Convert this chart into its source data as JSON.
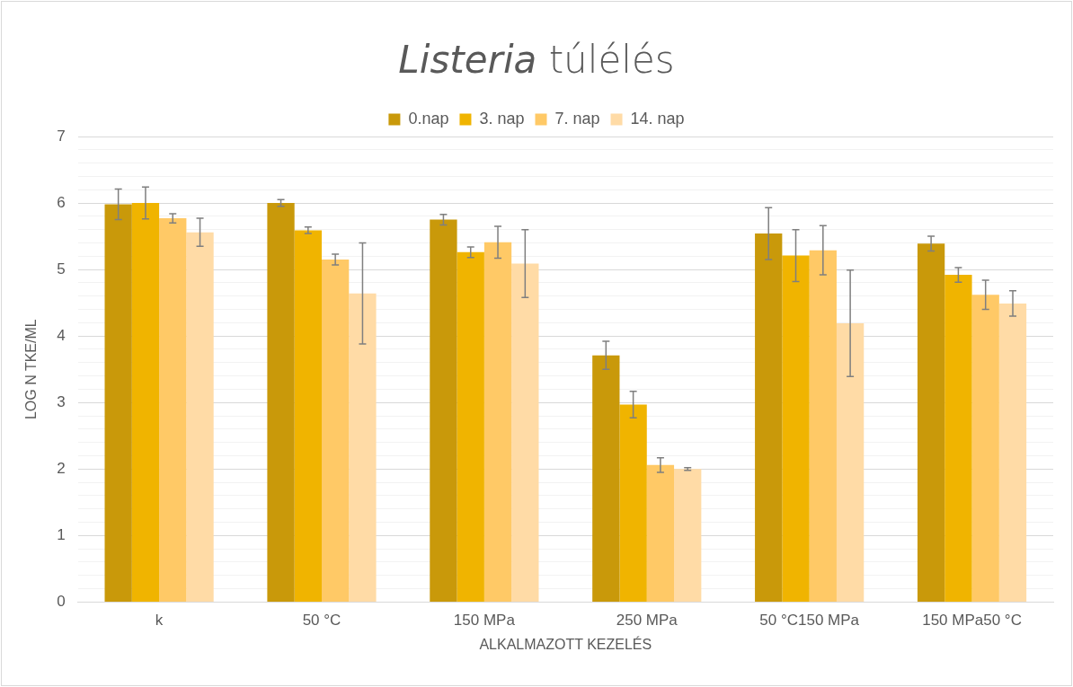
{
  "chart_data": {
    "type": "bar",
    "title": "Listeria túlélés",
    "xlabel": "ALKALMAZOTT KEZELÉS",
    "ylabel": "LOG N TKE/ML",
    "categories": [
      "k",
      "50 °C",
      "150 MPa",
      "250 MPa",
      "50 °C150 MPa",
      "150 MPa50 °C"
    ],
    "series": [
      {
        "name": "0.nap",
        "color": "#c9990a",
        "values": [
          5.98,
          6.0,
          5.75,
          3.71,
          5.54,
          5.39
        ],
        "errors": [
          0.23,
          0.05,
          0.08,
          0.21,
          0.39,
          0.11
        ]
      },
      {
        "name": "3. nap",
        "color": "#f0b400",
        "values": [
          6.0,
          5.59,
          5.26,
          2.97,
          5.21,
          4.92
        ],
        "errors": [
          0.24,
          0.05,
          0.08,
          0.2,
          0.39,
          0.11
        ]
      },
      {
        "name": "7. nap",
        "color": "#ffc966",
        "values": [
          5.77,
          5.15,
          5.41,
          2.06,
          5.29,
          4.62
        ],
        "errors": [
          0.07,
          0.08,
          0.24,
          0.11,
          0.37,
          0.22
        ]
      },
      {
        "name": "14. nap",
        "color": "#ffdba6",
        "values": [
          5.56,
          4.64,
          5.09,
          2.0,
          4.19,
          4.49
        ],
        "errors": [
          0.21,
          0.76,
          0.51,
          0.02,
          0.8,
          0.19
        ]
      }
    ],
    "ylim": [
      0,
      7
    ],
    "yticks": [
      0,
      {
        "value": 0.2,
        "label": null
      },
      {
        "value": 0.4,
        "label": null
      },
      {
        "value": 0.6,
        "label": null
      },
      {
        "value": 0.8,
        "label": null
      },
      1,
      {
        "value": 1.2,
        "label": null
      },
      {
        "value": 1.4,
        "label": null
      },
      {
        "value": 1.6,
        "label": null
      },
      {
        "value": 1.8,
        "label": null
      },
      2,
      {
        "value": 2.2,
        "label": null
      },
      {
        "value": 2.4,
        "label": null
      },
      {
        "value": 2.6,
        "label": null
      },
      {
        "value": 2.8,
        "label": null
      },
      3,
      {
        "value": 3.2,
        "label": null
      },
      {
        "value": 3.4,
        "label": null
      },
      {
        "value": 3.6,
        "label": null
      },
      {
        "value": 3.8,
        "label": null
      },
      4,
      {
        "value": 4.2,
        "label": null
      },
      {
        "value": 4.4,
        "label": null
      },
      {
        "value": 4.6,
        "label": null
      },
      {
        "value": 4.8,
        "label": null
      },
      5,
      {
        "value": 5.2,
        "label": null
      },
      {
        "value": 5.4,
        "label": null
      },
      {
        "value": 5.6,
        "label": null
      },
      {
        "value": 5.8,
        "label": null
      },
      6,
      {
        "value": 6.2,
        "label": null
      },
      {
        "value": 6.4,
        "label": null
      },
      {
        "value": 6.6,
        "label": null
      },
      {
        "value": 6.8,
        "label": null
      },
      7
    ],
    "grid": "y",
    "legend": "top"
  }
}
